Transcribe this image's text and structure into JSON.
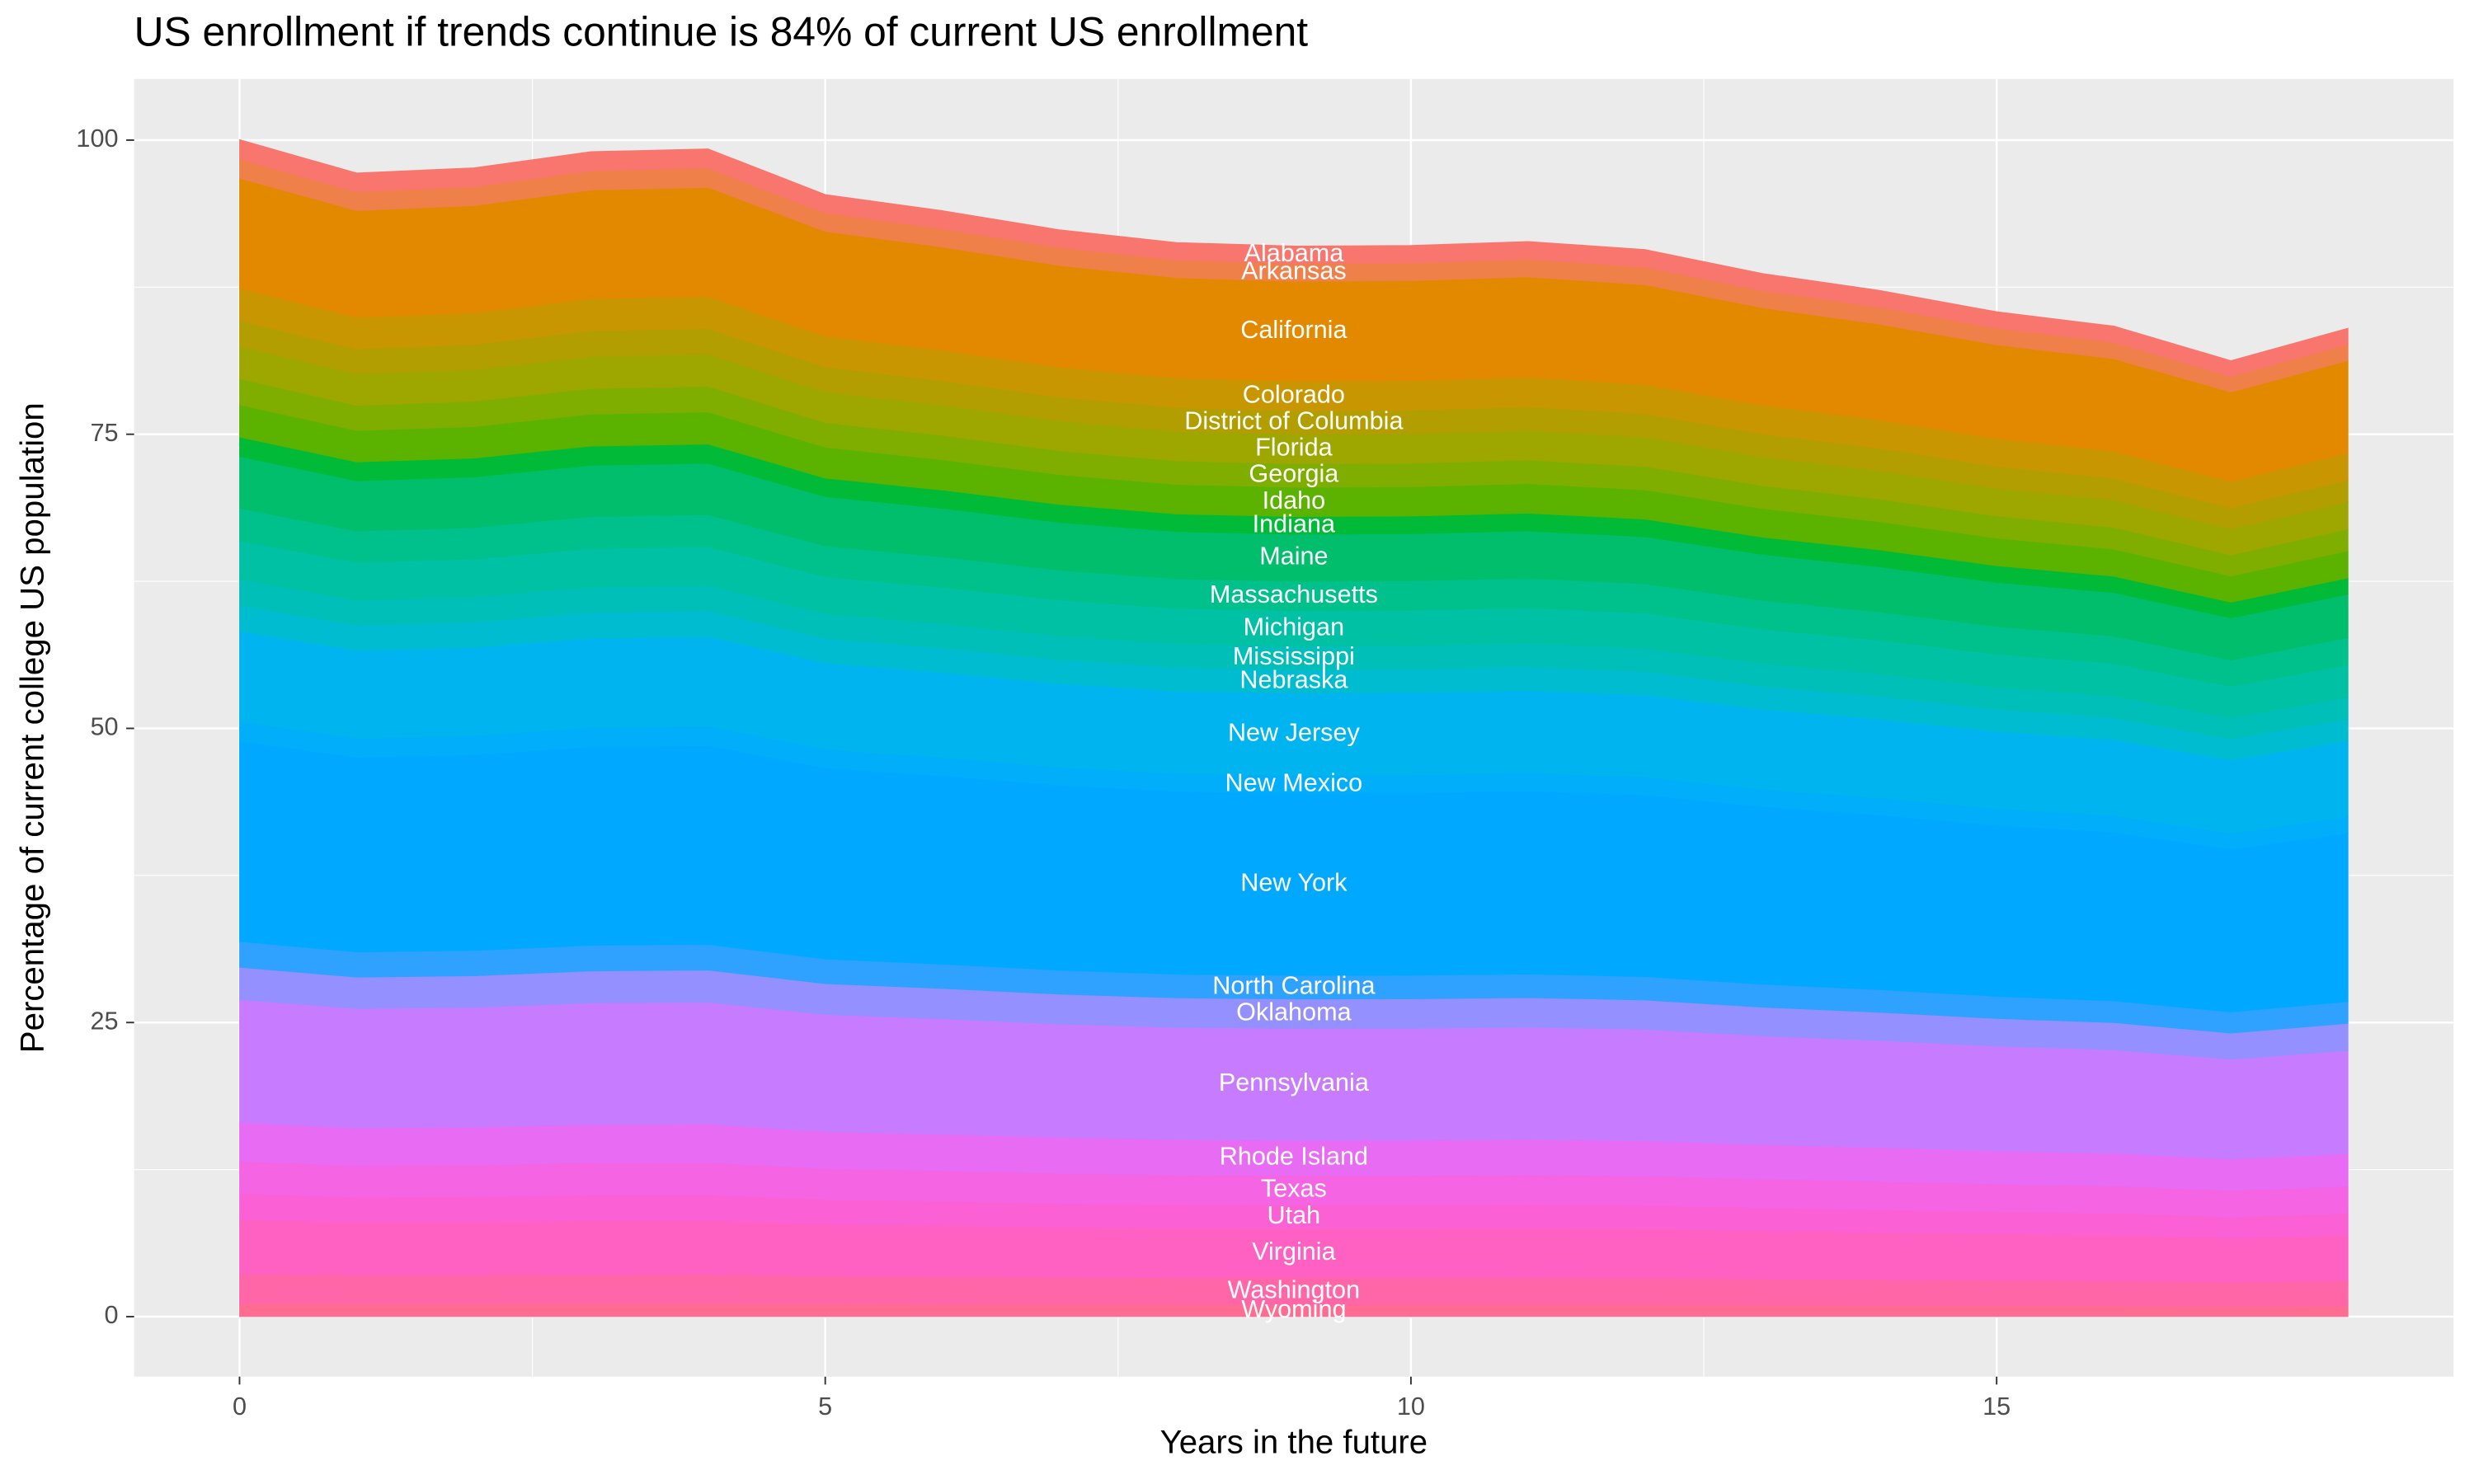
{
  "chart_data": {
    "type": "stacked_area",
    "title": "US enrollment if trends continue is 84% of current US enrollment",
    "x_label": "Years in the future",
    "y_label": "Percentage of current college US population",
    "x": [
      0,
      1,
      2,
      3,
      4,
      5,
      6,
      7,
      8,
      9,
      10,
      11,
      12,
      13,
      14,
      15,
      16,
      17,
      18
    ],
    "xlim": [
      -0.9,
      18.9
    ],
    "xticks": [
      0,
      5,
      10,
      15
    ],
    "ylim": [
      -5.1,
      105.2
    ],
    "yticks": [
      0,
      25,
      50,
      75,
      100
    ],
    "grid": true,
    "label_x": 9,
    "series": [
      {
        "name": "Alabama",
        "color": "#F8766D",
        "values": [
          1.65,
          1.6,
          1.61,
          1.63,
          1.64,
          1.57,
          1.55,
          1.52,
          1.5,
          1.5,
          1.5,
          1.51,
          1.5,
          1.46,
          1.44,
          1.41,
          1.39,
          1.34,
          1.38
        ]
      },
      {
        "name": "Arkansas",
        "color": "#F0804A",
        "values": [
          1.65,
          1.6,
          1.61,
          1.63,
          1.64,
          1.57,
          1.55,
          1.52,
          1.5,
          1.5,
          1.5,
          1.51,
          1.5,
          1.46,
          1.44,
          1.41,
          1.39,
          1.34,
          1.38
        ]
      },
      {
        "name": "California",
        "color": "#E38900",
        "values": [
          9.34,
          9.08,
          9.12,
          9.25,
          9.27,
          8.91,
          8.78,
          8.63,
          8.53,
          8.5,
          8.51,
          8.53,
          8.47,
          8.28,
          8.14,
          7.97,
          7.86,
          7.59,
          7.85
        ]
      },
      {
        "name": "Colorado",
        "color": "#C89600",
        "values": [
          2.75,
          2.67,
          2.68,
          2.72,
          2.73,
          2.62,
          2.58,
          2.54,
          2.51,
          2.5,
          2.5,
          2.51,
          2.49,
          2.44,
          2.4,
          2.35,
          2.31,
          2.23,
          2.31
        ]
      },
      {
        "name": "District of Columbia",
        "color": "#B39E00",
        "values": [
          2.2,
          2.14,
          2.15,
          2.18,
          2.18,
          2.1,
          2.07,
          2.03,
          2.01,
          2,
          2,
          2.01,
          1.99,
          1.95,
          1.92,
          1.88,
          1.85,
          1.79,
          1.85
        ]
      },
      {
        "name": "Florida",
        "color": "#9DA700",
        "values": [
          2.75,
          2.67,
          2.68,
          2.72,
          2.73,
          2.62,
          2.58,
          2.54,
          2.51,
          2.5,
          2.5,
          2.51,
          2.49,
          2.44,
          2.4,
          2.35,
          2.31,
          2.23,
          2.31
        ]
      },
      {
        "name": "Georgia",
        "color": "#80AE00",
        "values": [
          2.2,
          2.14,
          2.15,
          2.18,
          2.18,
          2.1,
          2.07,
          2.03,
          2.01,
          2,
          2,
          2.01,
          1.99,
          1.95,
          1.92,
          1.88,
          1.85,
          1.79,
          1.85
        ]
      },
      {
        "name": "Idaho",
        "color": "#5BB300",
        "values": [
          2.75,
          2.67,
          2.68,
          2.72,
          2.73,
          2.62,
          2.58,
          2.54,
          2.51,
          2.5,
          2.5,
          2.51,
          2.49,
          2.44,
          2.4,
          2.35,
          2.31,
          2.23,
          2.31
        ]
      },
      {
        "name": "Indiana",
        "color": "#00BA38",
        "values": [
          1.65,
          1.6,
          1.61,
          1.63,
          1.64,
          1.57,
          1.55,
          1.52,
          1.5,
          1.5,
          1.5,
          1.51,
          1.5,
          1.46,
          1.44,
          1.41,
          1.39,
          1.34,
          1.38
        ]
      },
      {
        "name": "Maine",
        "color": "#00BE6C",
        "values": [
          4.4,
          4.27,
          4.29,
          4.35,
          4.36,
          4.19,
          4.13,
          4.06,
          4.01,
          4,
          4,
          4.02,
          3.99,
          3.9,
          3.83,
          3.75,
          3.7,
          3.57,
          3.69
        ]
      },
      {
        "name": "Massachusetts",
        "color": "#00C08B",
        "values": [
          2.75,
          2.67,
          2.68,
          2.72,
          2.73,
          2.62,
          2.58,
          2.54,
          2.51,
          2.5,
          2.5,
          2.51,
          2.49,
          2.44,
          2.4,
          2.35,
          2.31,
          2.23,
          2.31
        ]
      },
      {
        "name": "Michigan",
        "color": "#00C1A3",
        "values": [
          3.3,
          3.2,
          3.22,
          3.26,
          3.27,
          3.14,
          3.1,
          3.05,
          3.01,
          3,
          3,
          3.01,
          2.99,
          2.92,
          2.87,
          2.81,
          2.78,
          2.68,
          2.77
        ]
      },
      {
        "name": "Mississippi",
        "color": "#00BFB8",
        "values": [
          2.2,
          2.14,
          2.15,
          2.18,
          2.18,
          2.1,
          2.07,
          2.03,
          2.01,
          2,
          2,
          2.01,
          1.99,
          1.95,
          1.92,
          1.88,
          1.85,
          1.79,
          1.85
        ]
      },
      {
        "name": "Nebraska",
        "color": "#00BCD0",
        "values": [
          2.2,
          2.14,
          2.15,
          2.18,
          2.18,
          2.1,
          2.07,
          2.03,
          2.01,
          2,
          2,
          2.01,
          1.99,
          1.95,
          1.92,
          1.88,
          1.85,
          1.79,
          1.85
        ]
      },
      {
        "name": "New Jersey",
        "color": "#00B4EF",
        "values": [
          7.69,
          7.48,
          7.51,
          7.62,
          7.63,
          7.34,
          7.23,
          7.11,
          7.02,
          7,
          7.01,
          7.03,
          6.98,
          6.82,
          6.71,
          6.57,
          6.48,
          6.25,
          6.46
        ]
      },
      {
        "name": "New Mexico",
        "color": "#00AEFA",
        "values": [
          1.65,
          1.6,
          1.61,
          1.63,
          1.64,
          1.57,
          1.55,
          1.52,
          1.5,
          1.5,
          1.5,
          1.51,
          1.5,
          1.46,
          1.44,
          1.41,
          1.39,
          1.34,
          1.38
        ]
      },
      {
        "name": "New York",
        "color": "#00A9FF",
        "values": [
          17.03,
          16.55,
          16.63,
          16.86,
          16.9,
          16.24,
          16.01,
          15.73,
          15.55,
          15.5,
          15.52,
          15.56,
          15.45,
          15.1,
          14.85,
          14.54,
          14.34,
          13.84,
          14.31
        ]
      },
      {
        "name": "North Carolina",
        "color": "#2FA1FF",
        "values": [
          2.2,
          2.14,
          2.15,
          2.18,
          2.18,
          2.1,
          2.07,
          2.03,
          2.01,
          2,
          2,
          2.01,
          1.99,
          1.95,
          1.92,
          1.88,
          1.85,
          1.79,
          1.85
        ]
      },
      {
        "name": "Oklahoma",
        "color": "#9590FF",
        "values": [
          2.75,
          2.67,
          2.68,
          2.72,
          2.73,
          2.62,
          2.58,
          2.54,
          2.51,
          2.5,
          2.5,
          2.51,
          2.49,
          2.44,
          2.4,
          2.35,
          2.31,
          2.23,
          2.31
        ]
      },
      {
        "name": "Pennsylvania",
        "color": "#C77CFF",
        "values": [
          10.44,
          10.15,
          10.19,
          10.34,
          10.36,
          9.96,
          9.81,
          9.64,
          9.53,
          9.5,
          9.51,
          9.54,
          9.47,
          9.25,
          9.1,
          8.91,
          8.79,
          8.48,
          8.77
        ]
      },
      {
        "name": "Rhode Island",
        "color": "#E76BF3",
        "values": [
          3.3,
          3.2,
          3.22,
          3.26,
          3.27,
          3.14,
          3.1,
          3.05,
          3.01,
          3,
          3,
          3.01,
          2.99,
          2.92,
          2.87,
          2.81,
          2.78,
          2.68,
          2.77
        ]
      },
      {
        "name": "Texas",
        "color": "#F564E3",
        "values": [
          2.75,
          2.67,
          2.68,
          2.72,
          2.73,
          2.62,
          2.58,
          2.54,
          2.51,
          2.5,
          2.5,
          2.51,
          2.49,
          2.44,
          2.4,
          2.35,
          2.31,
          2.23,
          2.31
        ]
      },
      {
        "name": "Utah",
        "color": "#FB61D5",
        "values": [
          2.2,
          2.14,
          2.15,
          2.18,
          2.18,
          2.1,
          2.07,
          2.03,
          2.01,
          2,
          2,
          2.01,
          1.99,
          1.95,
          1.92,
          1.88,
          1.85,
          1.79,
          1.85
        ]
      },
      {
        "name": "Virginia",
        "color": "#FF61C3",
        "values": [
          4.62,
          4.49,
          4.51,
          4.57,
          4.58,
          4.4,
          4.34,
          4.26,
          4.21,
          4.2,
          4.2,
          4.22,
          4.19,
          4.09,
          4.02,
          3.94,
          3.89,
          3.75,
          3.88
        ]
      },
      {
        "name": "Washington",
        "color": "#FF66A8",
        "values": [
          2.53,
          2.46,
          2.47,
          2.5,
          2.51,
          2.41,
          2.38,
          2.33,
          2.31,
          2.3,
          2.3,
          2.31,
          2.29,
          2.24,
          2.2,
          2.16,
          2.13,
          2.05,
          2.12
        ]
      },
      {
        "name": "Wyoming",
        "color": "#FF6C91",
        "values": [
          1.1,
          1.07,
          1.07,
          1.09,
          1.09,
          1.05,
          1.03,
          1.02,
          1,
          1,
          1,
          1,
          1,
          0.97,
          0.96,
          0.94,
          0.93,
          0.89,
          0.92
        ]
      }
    ]
  }
}
